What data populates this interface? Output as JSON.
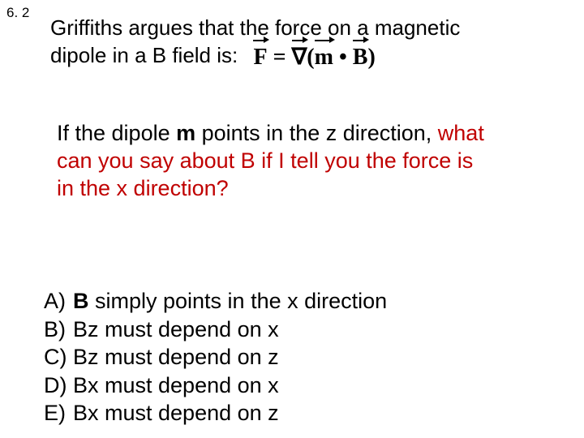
{
  "problem_number": "6. 2",
  "intro": {
    "line1": "Griffiths argues that the force on a magnetic",
    "line2_prefix": "dipole in a B field is:"
  },
  "formula": {
    "F": "F",
    "eq": " = ",
    "grad": "∇",
    "open": "(",
    "m": "m",
    "dot": " • ",
    "B": "B",
    "close": ")"
  },
  "question": {
    "prefix": "If the dipole ",
    "m_bold": "m",
    "part2": " points in the z direction, ",
    "red1": "what",
    "red2_prefix": "can you say about",
    "red2_B": " B ",
    "red2_rest": "if I tell you the force is",
    "red3": "in the x direction?"
  },
  "options": {
    "A": {
      "label": "A)",
      "B": "B",
      "text": " simply points in the x direction"
    },
    "B": {
      "label": "B)",
      "text": "Bz must depend on x"
    },
    "C": {
      "label": "C)",
      "text": "Bz must depend on z"
    },
    "D": {
      "label": "D)",
      "text": "Bx must depend on x"
    },
    "E": {
      "label": "E)",
      "text": "Bx must depend on z"
    }
  },
  "colors": {
    "red": "#c00000",
    "black": "#000000",
    "background": "#ffffff"
  },
  "fonts": {
    "body": "Arial",
    "formula": "Times New Roman",
    "body_size": 27,
    "number_size": 17
  }
}
